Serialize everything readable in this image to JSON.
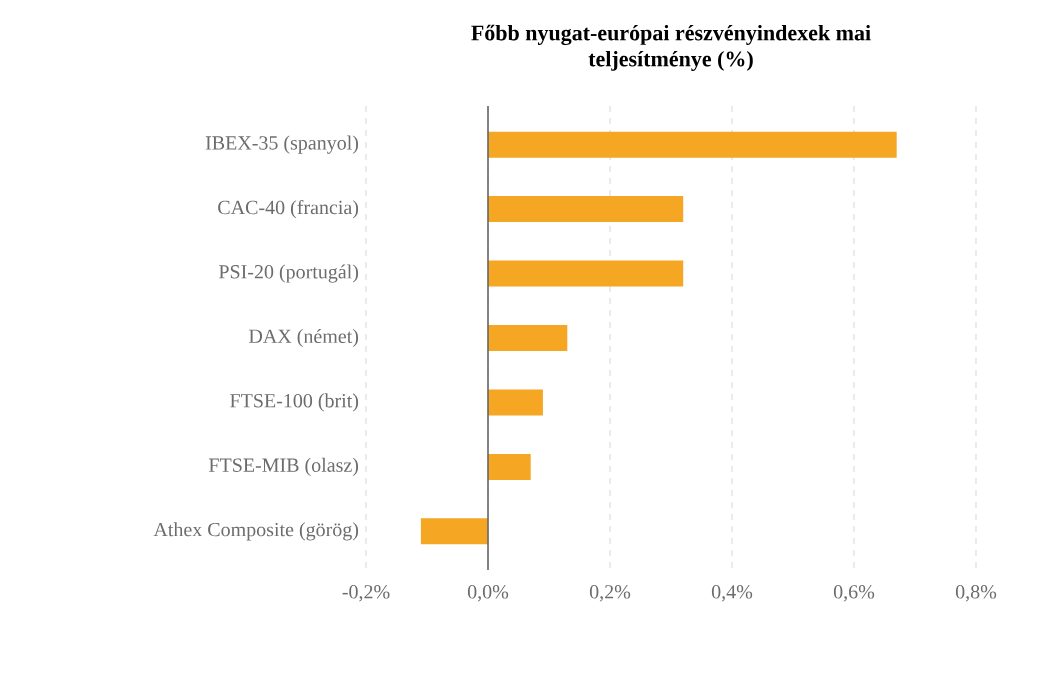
{
  "chart_data": {
    "type": "bar",
    "orientation": "horizontal",
    "title": "Főbb nyugat-európai részvényindexek mai teljesítménye (%)",
    "categories": [
      "IBEX-35 (spanyol)",
      "CAC-40 (francia)",
      "PSI-20 (portugál)",
      "DAX (német)",
      "FTSE-100 (brit)",
      "FTSE-MIB (olasz)",
      "Athex Composite (görög)"
    ],
    "values": [
      0.67,
      0.32,
      0.32,
      0.13,
      0.09,
      0.07,
      -0.11
    ],
    "color": "#f5a623",
    "xlim": [
      -0.2,
      0.8
    ],
    "xticks": [
      {
        "value": -0.2,
        "label": "-0,2%"
      },
      {
        "value": 0,
        "label": "0,0%"
      },
      {
        "value": 0.2,
        "label": "0,2%"
      },
      {
        "value": 0.4,
        "label": "0,4%"
      },
      {
        "value": 0.6,
        "label": "0,6%"
      },
      {
        "value": 0.8,
        "label": "0,8%"
      }
    ],
    "grid": "x"
  }
}
